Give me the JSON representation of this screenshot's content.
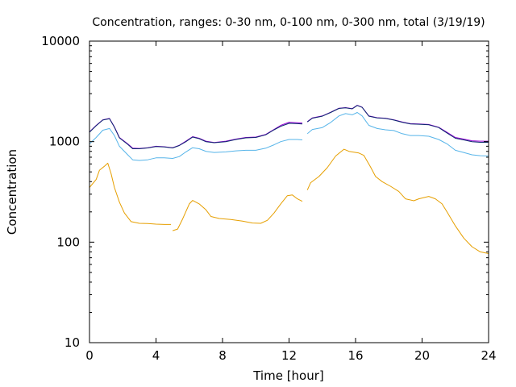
{
  "chart_data": {
    "type": "line",
    "title": "Concentration, ranges: 0-30 nm, 0-100 nm, 0-300 nm, total (3/19/19)",
    "xlabel": "Time [hour]",
    "ylabel": "Concentration",
    "xlim": [
      0,
      24
    ],
    "ylim": [
      10,
      10000
    ],
    "yscale": "log",
    "grid": false,
    "legend": "none",
    "xticks": [
      0,
      4,
      8,
      12,
      16,
      20,
      24
    ],
    "xtick_labels": [
      "0",
      "4",
      "8",
      "12",
      "16",
      "20",
      "24"
    ],
    "yticks": [
      10,
      100,
      1000,
      10000
    ],
    "ytick_labels": [
      "10",
      "100",
      "1000",
      "10000"
    ],
    "series": [
      {
        "color": "#e69f00",
        "segments": [
          [
            [
              0,
              350
            ],
            [
              0.4,
              420
            ],
            [
              0.6,
              520
            ],
            [
              0.9,
              570
            ],
            [
              1.1,
              610
            ],
            [
              1.3,
              480
            ],
            [
              1.5,
              350
            ],
            [
              1.8,
              250
            ],
            [
              2.1,
              195
            ],
            [
              2.5,
              160
            ],
            [
              3,
              154
            ],
            [
              3.5,
              153
            ],
            [
              4,
              151
            ],
            [
              4.5,
              150
            ],
            [
              4.9,
              150
            ]
          ],
          [
            [
              5,
              130
            ],
            [
              5.3,
              135
            ],
            [
              5.6,
              170
            ],
            [
              6,
              240
            ],
            [
              6.2,
              260
            ],
            [
              6.6,
              240
            ],
            [
              7,
              210
            ],
            [
              7.3,
              180
            ],
            [
              7.8,
              172
            ],
            [
              8.5,
              168
            ],
            [
              9.2,
              162
            ],
            [
              9.8,
              155
            ],
            [
              10.3,
              154
            ],
            [
              10.7,
              165
            ],
            [
              11.1,
              195
            ],
            [
              11.5,
              240
            ],
            [
              11.9,
              290
            ],
            [
              12.2,
              295
            ],
            [
              12.5,
              270
            ],
            [
              12.8,
              255
            ]
          ],
          [
            [
              13.1,
              330
            ],
            [
              13.3,
              390
            ],
            [
              13.8,
              450
            ],
            [
              14.3,
              550
            ],
            [
              14.8,
              720
            ],
            [
              15.3,
              840
            ],
            [
              15.6,
              800
            ],
            [
              16.2,
              770
            ],
            [
              16.5,
              730
            ],
            [
              16.9,
              560
            ],
            [
              17.2,
              450
            ],
            [
              17.6,
              400
            ],
            [
              18.1,
              360
            ],
            [
              18.6,
              320
            ],
            [
              19,
              270
            ],
            [
              19.5,
              258
            ],
            [
              19.8,
              270
            ],
            [
              20.2,
              280
            ],
            [
              20.4,
              285
            ],
            [
              20.8,
              270
            ],
            [
              21.2,
              240
            ],
            [
              21.5,
              200
            ],
            [
              22,
              145
            ],
            [
              22.5,
              110
            ],
            [
              23,
              90
            ],
            [
              23.5,
              80
            ],
            [
              24,
              77
            ]
          ]
        ]
      },
      {
        "color": "#56b4e9",
        "segments": [
          [
            [
              0,
              950
            ],
            [
              0.4,
              1100
            ],
            [
              0.8,
              1300
            ],
            [
              1.2,
              1350
            ],
            [
              1.5,
              1150
            ],
            [
              1.8,
              900
            ],
            [
              2.3,
              740
            ],
            [
              2.6,
              660
            ],
            [
              3,
              650
            ],
            [
              3.5,
              660
            ],
            [
              4,
              690
            ],
            [
              4.5,
              690
            ],
            [
              5,
              680
            ],
            [
              5.4,
              710
            ],
            [
              5.8,
              790
            ],
            [
              6.2,
              870
            ],
            [
              6.6,
              850
            ],
            [
              7,
              800
            ],
            [
              7.5,
              780
            ],
            [
              8.2,
              790
            ],
            [
              8.8,
              810
            ],
            [
              9.4,
              820
            ],
            [
              10,
              820
            ],
            [
              10.6,
              860
            ],
            [
              11.1,
              930
            ],
            [
              11.5,
              1000
            ],
            [
              12,
              1050
            ],
            [
              12.5,
              1050
            ],
            [
              12.8,
              1040
            ]
          ],
          [
            [
              13.1,
              1200
            ],
            [
              13.4,
              1320
            ],
            [
              14,
              1380
            ],
            [
              14.5,
              1550
            ],
            [
              15,
              1800
            ],
            [
              15.4,
              1900
            ],
            [
              15.8,
              1850
            ],
            [
              16.1,
              1950
            ],
            [
              16.4,
              1800
            ],
            [
              16.8,
              1450
            ],
            [
              17.3,
              1350
            ],
            [
              17.8,
              1310
            ],
            [
              18.3,
              1290
            ],
            [
              18.8,
              1200
            ],
            [
              19.3,
              1150
            ],
            [
              19.8,
              1150
            ],
            [
              20.4,
              1130
            ],
            [
              21,
              1050
            ],
            [
              21.5,
              950
            ],
            [
              22,
              820
            ],
            [
              22.5,
              780
            ],
            [
              23,
              740
            ],
            [
              23.5,
              725
            ],
            [
              24,
              720
            ]
          ]
        ]
      },
      {
        "color": "#9400d3",
        "segments": [
          [
            [
              0,
              1250
            ],
            [
              0.4,
              1450
            ],
            [
              0.8,
              1650
            ],
            [
              1.2,
              1700
            ],
            [
              1.5,
              1400
            ],
            [
              1.8,
              1100
            ],
            [
              2.3,
              950
            ],
            [
              2.6,
              860
            ],
            [
              3,
              855
            ],
            [
              3.5,
              870
            ],
            [
              4,
              900
            ],
            [
              4.5,
              890
            ],
            [
              5,
              870
            ],
            [
              5.4,
              920
            ],
            [
              5.8,
              1010
            ],
            [
              6.2,
              1120
            ],
            [
              6.6,
              1080
            ],
            [
              7,
              1010
            ],
            [
              7.5,
              980
            ],
            [
              8.2,
              1010
            ],
            [
              8.8,
              1060
            ],
            [
              9.4,
              1100
            ],
            [
              10,
              1110
            ],
            [
              10.6,
              1180
            ],
            [
              11.1,
              1320
            ],
            [
              11.5,
              1450
            ],
            [
              12,
              1560
            ],
            [
              12.5,
              1540
            ],
            [
              12.8,
              1530
            ]
          ],
          [
            [
              13.1,
              1580
            ],
            [
              13.4,
              1720
            ],
            [
              14,
              1800
            ],
            [
              14.5,
              1960
            ],
            [
              15,
              2150
            ],
            [
              15.4,
              2180
            ],
            [
              15.8,
              2130
            ],
            [
              16.1,
              2300
            ],
            [
              16.4,
              2200
            ],
            [
              16.8,
              1800
            ],
            [
              17.3,
              1730
            ],
            [
              17.8,
              1710
            ],
            [
              18.3,
              1650
            ],
            [
              18.8,
              1570
            ],
            [
              19.3,
              1510
            ],
            [
              19.8,
              1500
            ],
            [
              20.4,
              1480
            ],
            [
              21,
              1390
            ],
            [
              21.5,
              1240
            ],
            [
              22,
              1100
            ],
            [
              22.5,
              1060
            ],
            [
              23,
              1020
            ],
            [
              23.5,
              1010
            ],
            [
              24,
              1010
            ]
          ]
        ]
      },
      {
        "color": "#0b2a6e",
        "segments": [
          [
            [
              0,
              1240
            ],
            [
              0.4,
              1440
            ],
            [
              0.8,
              1640
            ],
            [
              1.2,
              1690
            ],
            [
              1.5,
              1390
            ],
            [
              1.8,
              1090
            ],
            [
              2.3,
              940
            ],
            [
              2.6,
              850
            ],
            [
              3,
              850
            ],
            [
              3.5,
              865
            ],
            [
              4,
              895
            ],
            [
              4.5,
              885
            ],
            [
              5,
              865
            ],
            [
              5.4,
              915
            ],
            [
              5.8,
              1000
            ],
            [
              6.2,
              1110
            ],
            [
              6.6,
              1070
            ],
            [
              7,
              1000
            ],
            [
              7.5,
              975
            ],
            [
              8.2,
              1000
            ],
            [
              8.8,
              1050
            ],
            [
              9.4,
              1090
            ],
            [
              10,
              1100
            ],
            [
              10.6,
              1170
            ],
            [
              11.1,
              1310
            ],
            [
              11.5,
              1420
            ],
            [
              12,
              1520
            ],
            [
              12.5,
              1510
            ],
            [
              12.8,
              1500
            ]
          ],
          [
            [
              13.1,
              1570
            ],
            [
              13.4,
              1710
            ],
            [
              14,
              1790
            ],
            [
              14.5,
              1950
            ],
            [
              15,
              2140
            ],
            [
              15.4,
              2170
            ],
            [
              15.8,
              2120
            ],
            [
              16.1,
              2290
            ],
            [
              16.4,
              2190
            ],
            [
              16.8,
              1790
            ],
            [
              17.3,
              1720
            ],
            [
              17.8,
              1700
            ],
            [
              18.3,
              1640
            ],
            [
              18.8,
              1560
            ],
            [
              19.3,
              1500
            ],
            [
              19.8,
              1490
            ],
            [
              20.4,
              1470
            ],
            [
              21,
              1380
            ],
            [
              21.5,
              1220
            ],
            [
              22,
              1080
            ],
            [
              22.5,
              1040
            ],
            [
              23,
              1000
            ],
            [
              23.5,
              985
            ],
            [
              24,
              985
            ]
          ]
        ]
      }
    ]
  }
}
